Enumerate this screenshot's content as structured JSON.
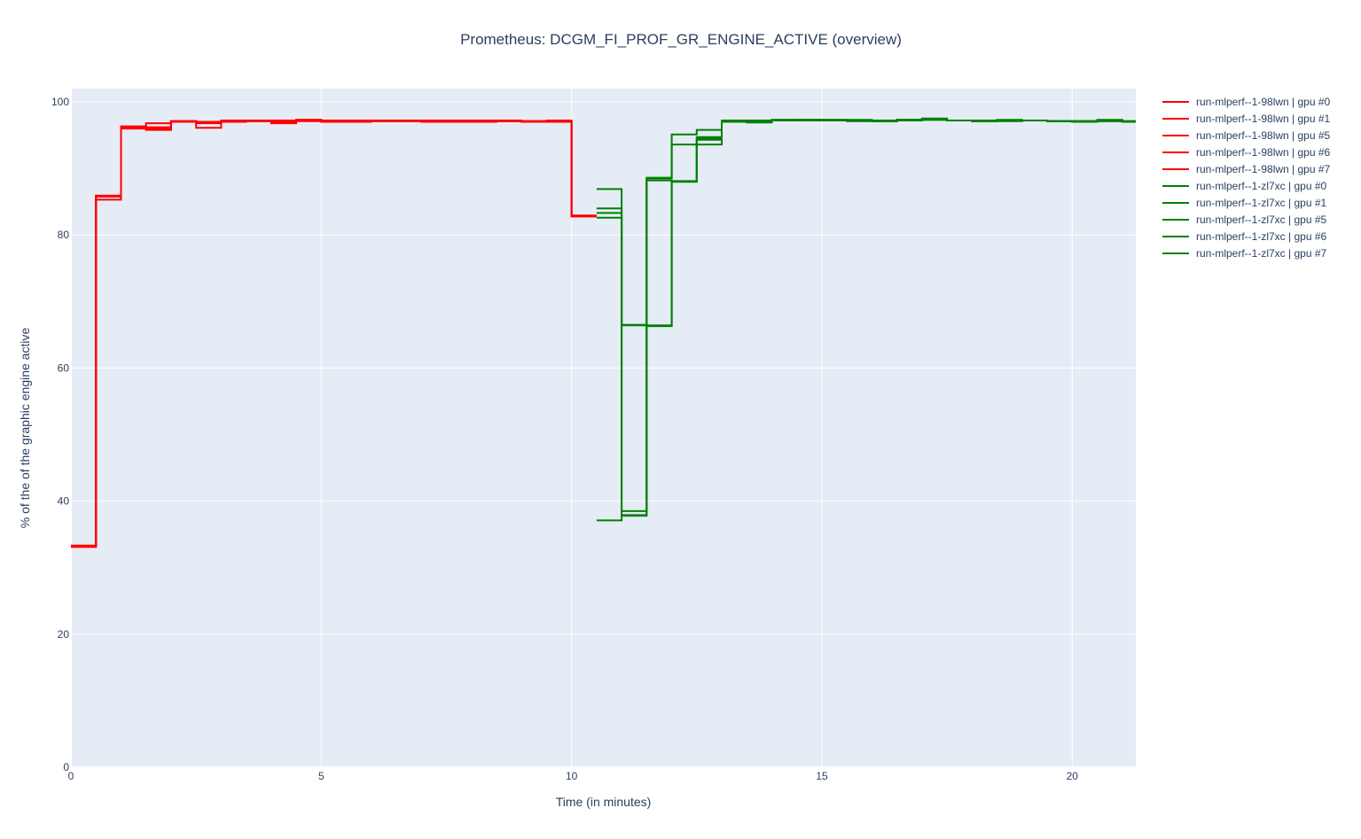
{
  "chart_data": {
    "type": "line",
    "title": "Prometheus: DCGM_FI_PROF_GR_ENGINE_ACTIVE (overview)",
    "xlabel": "Time (in minutes)",
    "ylabel": "% of the of the graphic engine active",
    "xlim": [
      0,
      21.27
    ],
    "ylim": [
      0,
      102
    ],
    "x_ticks": [
      0,
      5,
      10,
      15,
      20
    ],
    "y_ticks": [
      0,
      20,
      40,
      60,
      80,
      100
    ],
    "grid": true,
    "line_shape": "step",
    "legend_position": "top-right",
    "series": [
      {
        "name": "run-mlperf--1-98lwn | gpu #0",
        "color": "#ff0000",
        "x": [
          0,
          0.5,
          1,
          1.5,
          2,
          2.5,
          3,
          3.5,
          4,
          4.5,
          5,
          5.5,
          6,
          6.5,
          7,
          7.5,
          8,
          8.5,
          9,
          9.5,
          10,
          10.5
        ],
        "y": [
          33.2,
          85.8,
          96.2,
          96.8,
          97.1,
          97.0,
          97.1,
          97.2,
          97.1,
          97.3,
          97.1,
          97.0,
          97.1,
          97.1,
          97.0,
          97.0,
          97.1,
          97.1,
          97.0,
          97.0,
          82.9,
          82.9
        ]
      },
      {
        "name": "run-mlperf--1-98lwn | gpu #1",
        "color": "#ff0000",
        "x": [
          0,
          0.5,
          1,
          1.5,
          2,
          2.5,
          3,
          3.5,
          4,
          4.5,
          5,
          5.5,
          6,
          6.5,
          7,
          7.5,
          8,
          8.5,
          9,
          9.5,
          10,
          10.5
        ],
        "y": [
          33.1,
          85.3,
          96.0,
          95.9,
          97.0,
          96.1,
          97.0,
          97.1,
          96.8,
          97.2,
          97.0,
          97.2,
          97.2,
          97.2,
          97.1,
          97.1,
          97.2,
          97.1,
          97.0,
          97.1,
          82.8,
          82.8
        ]
      },
      {
        "name": "run-mlperf--1-98lwn | gpu #5",
        "color": "#ff0000",
        "x": [
          0,
          0.5,
          1,
          1.5,
          2,
          2.5,
          3,
          3.5,
          4,
          4.5,
          5,
          5.5,
          6,
          6.5,
          7,
          7.5,
          8,
          8.5,
          9,
          9.5,
          10,
          10.5
        ],
        "y": [
          33.3,
          85.9,
          96.3,
          95.8,
          97.1,
          96.9,
          97.2,
          97.2,
          97.2,
          97.2,
          97.2,
          97.1,
          97.2,
          97.1,
          97.1,
          97.2,
          97.2,
          97.2,
          97.1,
          97.1,
          82.9,
          82.9
        ]
      },
      {
        "name": "run-mlperf--1-98lwn | gpu #6",
        "color": "#ff0000",
        "x": [
          0,
          0.5,
          1,
          1.5,
          2,
          2.5,
          3,
          3.5,
          4,
          4.5,
          5,
          5.5,
          6,
          6.5,
          7,
          7.5,
          8,
          8.5,
          9,
          9.5,
          10,
          10.5
        ],
        "y": [
          33.2,
          85.8,
          96.1,
          96.2,
          97.0,
          96.8,
          97.1,
          97.1,
          97.0,
          97.1,
          97.2,
          97.1,
          97.1,
          97.2,
          97.1,
          97.1,
          97.0,
          97.1,
          97.1,
          97.0,
          82.8,
          82.8
        ]
      },
      {
        "name": "run-mlperf--1-98lwn | gpu #7",
        "color": "#ff0000",
        "x": [
          0,
          0.5,
          1,
          1.5,
          2,
          2.5,
          3,
          3.5,
          4,
          4.5,
          5,
          5.5,
          6,
          6.5,
          7,
          7.5,
          8,
          8.5,
          9,
          9.5,
          10,
          10.5
        ],
        "y": [
          33.3,
          85.9,
          96.3,
          96.0,
          97.1,
          97.0,
          97.2,
          97.2,
          97.1,
          97.3,
          97.2,
          97.1,
          97.2,
          97.2,
          97.2,
          97.2,
          97.1,
          97.2,
          97.1,
          97.2,
          82.9,
          82.9
        ]
      },
      {
        "name": "run-mlperf--1-zl7xc | gpu #0",
        "color": "#008000",
        "x": [
          10.5,
          11,
          11.5,
          12,
          12.5,
          13,
          13.5,
          14,
          14.5,
          15,
          15.5,
          16,
          16.5,
          17,
          17.5,
          18,
          18.5,
          19,
          19.5,
          20,
          20.5,
          21,
          21.27
        ],
        "y": [
          86.9,
          66.5,
          88.5,
          95.1,
          95.8,
          97.1,
          97.2,
          97.2,
          97.2,
          97.3,
          97.3,
          97.1,
          97.3,
          97.3,
          97.2,
          97.1,
          97.3,
          97.2,
          97.1,
          97.1,
          97.2,
          97.0,
          97.0
        ]
      },
      {
        "name": "run-mlperf--1-zl7xc | gpu #1",
        "color": "#008000",
        "x": [
          10.5,
          11,
          11.5,
          12,
          12.5,
          13,
          13.5,
          14,
          14.5,
          15,
          15.5,
          16,
          16.5,
          17,
          17.5,
          18,
          18.5,
          19,
          19.5,
          20,
          20.5,
          21,
          21.27
        ],
        "y": [
          84.0,
          38.5,
          88.6,
          93.6,
          94.7,
          97.0,
          96.9,
          97.3,
          97.2,
          97.2,
          97.1,
          97.1,
          97.2,
          97.3,
          97.2,
          97.2,
          97.2,
          97.2,
          97.1,
          97.0,
          97.2,
          97.1,
          97.1
        ]
      },
      {
        "name": "run-mlperf--1-zl7xc | gpu #5",
        "color": "#008000",
        "x": [
          10.5,
          11,
          11.5,
          12,
          12.5,
          13,
          13.5,
          14,
          14.5,
          15,
          15.5,
          16,
          16.5,
          17,
          17.5,
          18,
          18.5,
          19,
          19.5,
          20,
          20.5,
          21,
          21.27
        ],
        "y": [
          83.3,
          66.4,
          88.2,
          88.0,
          93.6,
          97.1,
          97.1,
          97.2,
          97.3,
          97.2,
          97.2,
          97.1,
          97.2,
          97.4,
          97.2,
          97.1,
          97.2,
          97.2,
          97.1,
          97.1,
          97.1,
          97.0,
          97.0
        ]
      },
      {
        "name": "run-mlperf--1-zl7xc | gpu #6",
        "color": "#008000",
        "x": [
          10.5,
          11,
          11.5,
          12,
          12.5,
          13,
          13.5,
          14,
          14.5,
          15,
          15.5,
          16,
          16.5,
          17,
          17.5,
          18,
          18.5,
          19,
          19.5,
          20,
          20.5,
          21,
          21.27
        ],
        "y": [
          82.6,
          37.9,
          66.4,
          88.1,
          94.5,
          97.2,
          97.2,
          97.2,
          97.3,
          97.3,
          97.2,
          97.1,
          97.3,
          97.5,
          97.2,
          97.1,
          97.1,
          97.2,
          97.1,
          97.0,
          97.3,
          97.1,
          97.1
        ]
      },
      {
        "name": "run-mlperf--1-zl7xc | gpu #7",
        "color": "#008000",
        "x": [
          10.5,
          11,
          11.5,
          12,
          12.5,
          13,
          13.5,
          14,
          14.5,
          15,
          15.5,
          16,
          16.5,
          17,
          17.5,
          18,
          18.5,
          19,
          19.5,
          20,
          20.5,
          21,
          21.27
        ],
        "y": [
          37.1,
          37.8,
          66.3,
          88.0,
          94.3,
          97.0,
          97.2,
          97.3,
          97.3,
          97.2,
          97.2,
          97.2,
          97.3,
          97.4,
          97.2,
          97.2,
          97.2,
          97.2,
          97.1,
          97.1,
          97.1,
          97.0,
          97.0
        ]
      }
    ]
  }
}
